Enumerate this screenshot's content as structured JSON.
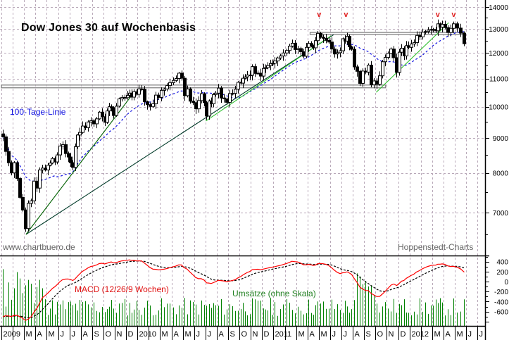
{
  "chart_data": {
    "type": "candlestick",
    "title": "Dow Jones 30 auf Wochenbasis",
    "source_left": "www.chartbuero.de",
    "source_right": "Hoppenstedt-Charts",
    "price_axis": {
      "scale": "log",
      "range": [
        6400,
        14300
      ],
      "ticks": [
        14000,
        13000,
        12000,
        11000,
        10000,
        9000,
        8000,
        7000
      ],
      "grid": true
    },
    "x_axis": {
      "range": [
        "2009-01",
        "2012-07"
      ],
      "ticks": [
        {
          "month": "2009-01",
          "label": "2009"
        },
        {
          "month": "2009-02",
          "label": ""
        },
        {
          "month": "2009-03",
          "label": "M"
        },
        {
          "month": "2009-04",
          "label": "A"
        },
        {
          "month": "2009-05",
          "label": "M"
        },
        {
          "month": "2009-06",
          "label": "J"
        },
        {
          "month": "2009-07",
          "label": "J"
        },
        {
          "month": "2009-08",
          "label": "A"
        },
        {
          "month": "2009-09",
          "label": "S"
        },
        {
          "month": "2009-10",
          "label": "O"
        },
        {
          "month": "2009-11",
          "label": "N"
        },
        {
          "month": "2009-12",
          "label": "D"
        },
        {
          "month": "2010-01",
          "label": "2010"
        },
        {
          "month": "2010-02",
          "label": ""
        },
        {
          "month": "2010-03",
          "label": "M"
        },
        {
          "month": "2010-04",
          "label": "A"
        },
        {
          "month": "2010-05",
          "label": "M"
        },
        {
          "month": "2010-06",
          "label": "J"
        },
        {
          "month": "2010-07",
          "label": "J"
        },
        {
          "month": "2010-08",
          "label": "A"
        },
        {
          "month": "2010-09",
          "label": "S"
        },
        {
          "month": "2010-10",
          "label": "O"
        },
        {
          "month": "2010-11",
          "label": "N"
        },
        {
          "month": "2010-12",
          "label": "D"
        },
        {
          "month": "2011-01",
          "label": "2011"
        },
        {
          "month": "2011-02",
          "label": ""
        },
        {
          "month": "2011-03",
          "label": "M"
        },
        {
          "month": "2011-04",
          "label": "A"
        },
        {
          "month": "2011-05",
          "label": "M"
        },
        {
          "month": "2011-06",
          "label": "J"
        },
        {
          "month": "2011-07",
          "label": "J"
        },
        {
          "month": "2011-08",
          "label": "A"
        },
        {
          "month": "2011-09",
          "label": "S"
        },
        {
          "month": "2011-10",
          "label": "O"
        },
        {
          "month": "2011-11",
          "label": "N"
        },
        {
          "month": "2011-12",
          "label": "D"
        },
        {
          "month": "2012-01",
          "label": "2012"
        },
        {
          "month": "2012-02",
          "label": ""
        },
        {
          "month": "2012-03",
          "label": "M"
        },
        {
          "month": "2012-04",
          "label": "A"
        },
        {
          "month": "2012-05",
          "label": "M"
        },
        {
          "month": "2012-06",
          "label": "J"
        },
        {
          "month": "2012-07",
          "label": "J"
        }
      ]
    },
    "weekly_closes": [
      {
        "month": "2009-01",
        "closes": [
          9035,
          8600,
          8280,
          8000
        ]
      },
      {
        "month": "2009-02",
        "closes": [
          8280,
          7850,
          7365,
          7060
        ]
      },
      {
        "month": "2009-03",
        "closes": [
          6630,
          7220,
          7280,
          7780
        ]
      },
      {
        "month": "2009-04",
        "closes": [
          7600,
          8080,
          8130,
          8080
        ]
      },
      {
        "month": "2009-05",
        "closes": [
          8210,
          8270,
          8400,
          8300,
          8500
        ]
      },
      {
        "month": "2009-06",
        "closes": [
          8760,
          8800,
          8540,
          8440
        ]
      },
      {
        "month": "2009-07",
        "closes": [
          8280,
          8150,
          8740,
          9090,
          9170
        ]
      },
      {
        "month": "2009-08",
        "closes": [
          9370,
          9320,
          9500,
          9540
        ]
      },
      {
        "month": "2009-09",
        "closes": [
          9440,
          9600,
          9820,
          9670
        ]
      },
      {
        "month": "2009-10",
        "closes": [
          9490,
          9860,
          10000,
          9970,
          9710
        ]
      },
      {
        "month": "2009-11",
        "closes": [
          10020,
          10270,
          10320,
          10310
        ]
      },
      {
        "month": "2009-12",
        "closes": [
          10390,
          10470,
          10330,
          10520,
          10430
        ]
      },
      {
        "month": "2010-01",
        "closes": [
          10620,
          10610,
          10170,
          10070
        ]
      },
      {
        "month": "2010-02",
        "closes": [
          10010,
          10100,
          10400,
          10320
        ]
      },
      {
        "month": "2010-03",
        "closes": [
          10570,
          10620,
          10740,
          10850
        ]
      },
      {
        "month": "2010-04",
        "closes": [
          10930,
          11000,
          11200,
          11010
        ]
      },
      {
        "month": "2010-05",
        "closes": [
          10380,
          10620,
          10190,
          10140
        ]
      },
      {
        "month": "2010-06",
        "closes": [
          9930,
          10210,
          10450,
          10140
        ]
      },
      {
        "month": "2010-07",
        "closes": [
          9690,
          10200,
          10100,
          10420,
          10470
        ]
      },
      {
        "month": "2010-08",
        "closes": [
          10650,
          10300,
          10270,
          10150
        ]
      },
      {
        "month": "2010-09",
        "closes": [
          10450,
          10460,
          10610,
          10860
        ]
      },
      {
        "month": "2010-10",
        "closes": [
          10830,
          11010,
          11060,
          11130,
          11120
        ]
      },
      {
        "month": "2010-11",
        "closes": [
          11450,
          11190,
          11200,
          11090
        ]
      },
      {
        "month": "2010-12",
        "closes": [
          11380,
          11410,
          11490,
          11570,
          11580
        ]
      },
      {
        "month": "2011-01",
        "closes": [
          11670,
          11790,
          11870,
          11990
        ]
      },
      {
        "month": "2011-02",
        "closes": [
          12090,
          12270,
          12390,
          12130
        ]
      },
      {
        "month": "2011-03",
        "closes": [
          12170,
          12040,
          11860,
          12220
        ]
      },
      {
        "month": "2011-04",
        "closes": [
          12380,
          12280,
          12200,
          12500,
          12810
        ]
      },
      {
        "month": "2011-05",
        "closes": [
          12640,
          12600,
          12510,
          12440
        ]
      },
      {
        "month": "2011-06",
        "closes": [
          12150,
          11950,
          12000,
          12080
        ]
      },
      {
        "month": "2011-07",
        "closes": [
          12580,
          12480,
          12680,
          12240,
          12140
        ]
      },
      {
        "month": "2011-08",
        "closes": [
          11440,
          11270,
          10820,
          11280
        ]
      },
      {
        "month": "2011-09",
        "closes": [
          11240,
          11510,
          10770,
          10910
        ]
      },
      {
        "month": "2011-10",
        "closes": [
          10790,
          11100,
          11640,
          11810
        ]
      },
      {
        "month": "2011-11",
        "closes": [
          11980,
          12150,
          11800,
          11230
        ]
      },
      {
        "month": "2011-12",
        "closes": [
          12020,
          12180,
          11870,
          12290,
          12220
        ]
      },
      {
        "month": "2012-01",
        "closes": [
          12360,
          12420,
          12720,
          12660
        ]
      },
      {
        "month": "2012-02",
        "closes": [
          12860,
          12890,
          12950,
          12980
        ]
      },
      {
        "month": "2012-03",
        "closes": [
          12980,
          12920,
          13230,
          13080,
          13210
        ]
      },
      {
        "month": "2012-04",
        "closes": [
          13060,
          12850,
          13030,
          13230
        ]
      },
      {
        "month": "2012-05",
        "closes": [
          13040,
          12820,
          12370
        ]
      }
    ],
    "moving_average": {
      "label": "100-Tage-Linie",
      "color": "#1010e0",
      "style": "dashed"
    },
    "trendlines": [
      {
        "from": {
          "date": "2009-03-06",
          "value": 6500
        },
        "to": {
          "date": "2011-06-10",
          "value": 12750
        },
        "color": "#003a28"
      },
      {
        "from": {
          "date": "2009-03-06",
          "value": 6500
        },
        "to": {
          "date": "2009-12-21",
          "value": 10480
        },
        "color": "#006000"
      },
      {
        "from": {
          "date": "2010-07-02",
          "value": 9530
        },
        "to": {
          "date": "2011-06-03",
          "value": 12700
        },
        "color": "#30c030"
      },
      {
        "from": {
          "date": "2011-10-03",
          "value": 10500
        },
        "to": {
          "date": "2012-04-15",
          "value": 13280
        },
        "color": "#30c030"
      }
    ],
    "resistance_bands": [
      {
        "from": "2011-04-08",
        "to": "2012-05-25",
        "top": 12850,
        "bottom": 12760
      },
      {
        "from": "2009-01-01",
        "to": "2011-10-28",
        "top": 10760,
        "bottom": 10660
      }
    ],
    "top_markers": {
      "symbol": "v",
      "color": "#e02020",
      "dates": [
        "2011-05-02",
        "2011-07-13",
        "2012-03-16",
        "2012-04-28"
      ]
    },
    "macd": {
      "label": "MACD (12/26/9 Wochen)",
      "fast": 12,
      "slow": 26,
      "signal": 9,
      "ticks": [
        400,
        200,
        0,
        -200,
        -400,
        -600
      ],
      "range": [
        -880,
        500
      ],
      "macd_color": "#ff0000",
      "signal_color": "#000000"
    },
    "volume": {
      "label": "Umsätze (ohne Skala)",
      "color": "#008000"
    }
  }
}
